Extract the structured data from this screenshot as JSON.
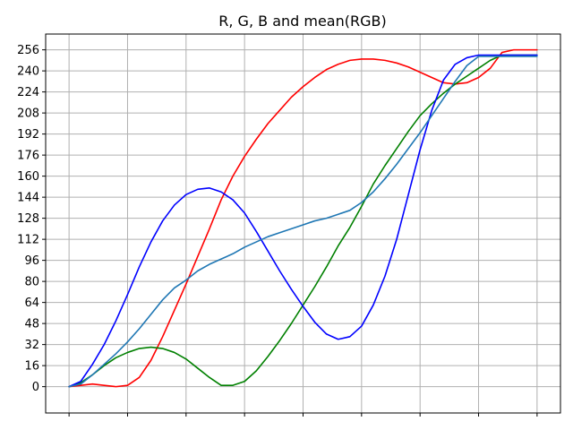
{
  "chart_data": {
    "type": "line",
    "title": "R, G, B and mean(RGB)",
    "xlabel": "",
    "ylabel": "",
    "xlim": [
      0,
      1000
    ],
    "ylim": [
      -20,
      268
    ],
    "xticks": [
      0,
      125,
      250,
      375,
      500,
      625,
      750,
      875,
      1000
    ],
    "xtick_labels": [
      "",
      "",
      "",
      "",
      "",
      "",
      "",
      "",
      ""
    ],
    "yticks": [
      0,
      16,
      32,
      48,
      64,
      80,
      96,
      112,
      128,
      144,
      160,
      176,
      192,
      208,
      224,
      240,
      256
    ],
    "ytick_labels": [
      "0",
      "16",
      "32",
      "48",
      "64",
      "80",
      "96",
      "112",
      "128",
      "144",
      "160",
      "176",
      "192",
      "208",
      "224",
      "240",
      "256"
    ],
    "grid": true,
    "legend": false,
    "series": [
      {
        "color": "#ff0000",
        "x": [
          0,
          25,
          50,
          75,
          100,
          125,
          150,
          175,
          200,
          225,
          250,
          275,
          300,
          325,
          350,
          375,
          400,
          425,
          450,
          475,
          500,
          525,
          550,
          575,
          600,
          625,
          650,
          675,
          700,
          725,
          750,
          775,
          800,
          825,
          850,
          875,
          900,
          925,
          950,
          975,
          1000
        ],
        "values": [
          0,
          1,
          2,
          1,
          0,
          1,
          7,
          20,
          38,
          58,
          78,
          99,
          120,
          142,
          160,
          175,
          188,
          200,
          210,
          220,
          228,
          235,
          241,
          245,
          248,
          249,
          249,
          248,
          246,
          243,
          239,
          235,
          231,
          230,
          231,
          235,
          242,
          254,
          256,
          256,
          256
        ]
      },
      {
        "color": "#008000",
        "x": [
          0,
          25,
          50,
          75,
          100,
          125,
          150,
          175,
          200,
          225,
          250,
          275,
          300,
          325,
          350,
          375,
          400,
          425,
          450,
          475,
          500,
          525,
          550,
          575,
          600,
          625,
          650,
          675,
          700,
          725,
          750,
          775,
          800,
          825,
          850,
          875,
          900,
          925,
          950,
          975,
          1000
        ],
        "values": [
          0,
          3,
          9,
          16,
          22,
          26,
          29,
          30,
          29,
          26,
          21,
          14,
          7,
          1,
          1,
          4,
          12,
          23,
          35,
          48,
          62,
          76,
          91,
          107,
          121,
          137,
          154,
          168,
          181,
          194,
          206,
          215,
          223,
          230,
          236,
          242,
          248,
          252,
          252,
          252,
          252
        ]
      },
      {
        "color": "#0000ff",
        "x": [
          0,
          25,
          50,
          75,
          100,
          125,
          150,
          175,
          200,
          225,
          250,
          275,
          300,
          325,
          350,
          375,
          400,
          425,
          450,
          475,
          500,
          525,
          550,
          575,
          600,
          625,
          650,
          675,
          700,
          725,
          750,
          775,
          800,
          825,
          850,
          875,
          900,
          925,
          950,
          975,
          1000
        ],
        "values": [
          0,
          4,
          17,
          32,
          50,
          70,
          91,
          110,
          126,
          138,
          146,
          150,
          151,
          148,
          142,
          132,
          118,
          103,
          88,
          74,
          61,
          49,
          40,
          36,
          38,
          46,
          62,
          84,
          112,
          146,
          180,
          210,
          233,
          245,
          250,
          252,
          252,
          252,
          252,
          252,
          252
        ]
      },
      {
        "color": "#1f77b4",
        "x": [
          0,
          25,
          50,
          75,
          100,
          125,
          150,
          175,
          200,
          225,
          250,
          275,
          300,
          325,
          350,
          375,
          400,
          425,
          450,
          475,
          500,
          525,
          550,
          575,
          600,
          625,
          650,
          675,
          700,
          725,
          750,
          775,
          800,
          825,
          850,
          875,
          900,
          925,
          950,
          975,
          1000
        ],
        "values": [
          0,
          2,
          9,
          17,
          25,
          34,
          44,
          55,
          66,
          75,
          81,
          88,
          93,
          97,
          101,
          106,
          110,
          114,
          117,
          120,
          123,
          126,
          128,
          131,
          134,
          140,
          148,
          158,
          169,
          181,
          193,
          206,
          219,
          232,
          244,
          251,
          251,
          251,
          251,
          251,
          251
        ]
      }
    ]
  }
}
